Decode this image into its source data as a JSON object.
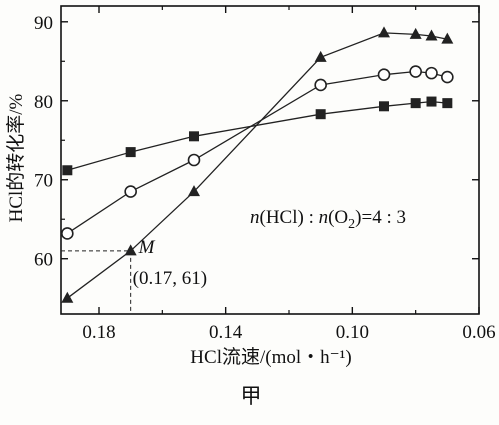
{
  "chart_data": {
    "type": "line",
    "x_axis": {
      "label": "HCl流速/(mol・h⁻¹)",
      "range": [
        0.192,
        0.06
      ],
      "reversed": true,
      "ticks": [
        0.18,
        0.14,
        0.1,
        0.06
      ],
      "tick_labels": [
        "0.18",
        "0.14",
        "0.10",
        "0.06"
      ],
      "minor_ticks": [
        0.16,
        0.12,
        0.08
      ]
    },
    "y_axis": {
      "label": "HCl的转化率/%",
      "range": [
        53,
        92
      ],
      "ticks": [
        60,
        70,
        80,
        90
      ],
      "tick_labels": [
        "60",
        "70",
        "80",
        "90"
      ]
    },
    "series": [
      {
        "marker": "square-filled",
        "color": "#222222",
        "x": [
          0.19,
          0.17,
          0.15,
          0.11,
          0.09,
          0.08,
          0.075,
          0.07
        ],
        "y": [
          71.2,
          73.5,
          75.5,
          78.3,
          79.3,
          79.7,
          79.9,
          79.7
        ]
      },
      {
        "marker": "circle-open",
        "color": "#222222",
        "x": [
          0.19,
          0.17,
          0.15,
          0.11,
          0.09,
          0.08,
          0.075,
          0.07
        ],
        "y": [
          63.2,
          68.5,
          72.5,
          82.0,
          83.3,
          83.7,
          83.5,
          83.0
        ]
      },
      {
        "marker": "triangle-filled",
        "color": "#222222",
        "x": [
          0.19,
          0.17,
          0.15,
          0.11,
          0.09,
          0.08,
          0.075,
          0.07
        ],
        "y": [
          55.0,
          61.0,
          68.5,
          85.5,
          88.6,
          88.4,
          88.2,
          87.8
        ]
      }
    ],
    "annotations": {
      "ratio": {
        "n1": "n",
        "hcl": "(HCl) : ",
        "n2": "n",
        "o2": "(O",
        "sub": "2",
        "rest": ")=4 : 3"
      },
      "point_M": {
        "label": "M",
        "coords": "(0.17, 61)",
        "x": 0.17,
        "y": 61
      }
    },
    "caption": "甲",
    "grid": false
  }
}
